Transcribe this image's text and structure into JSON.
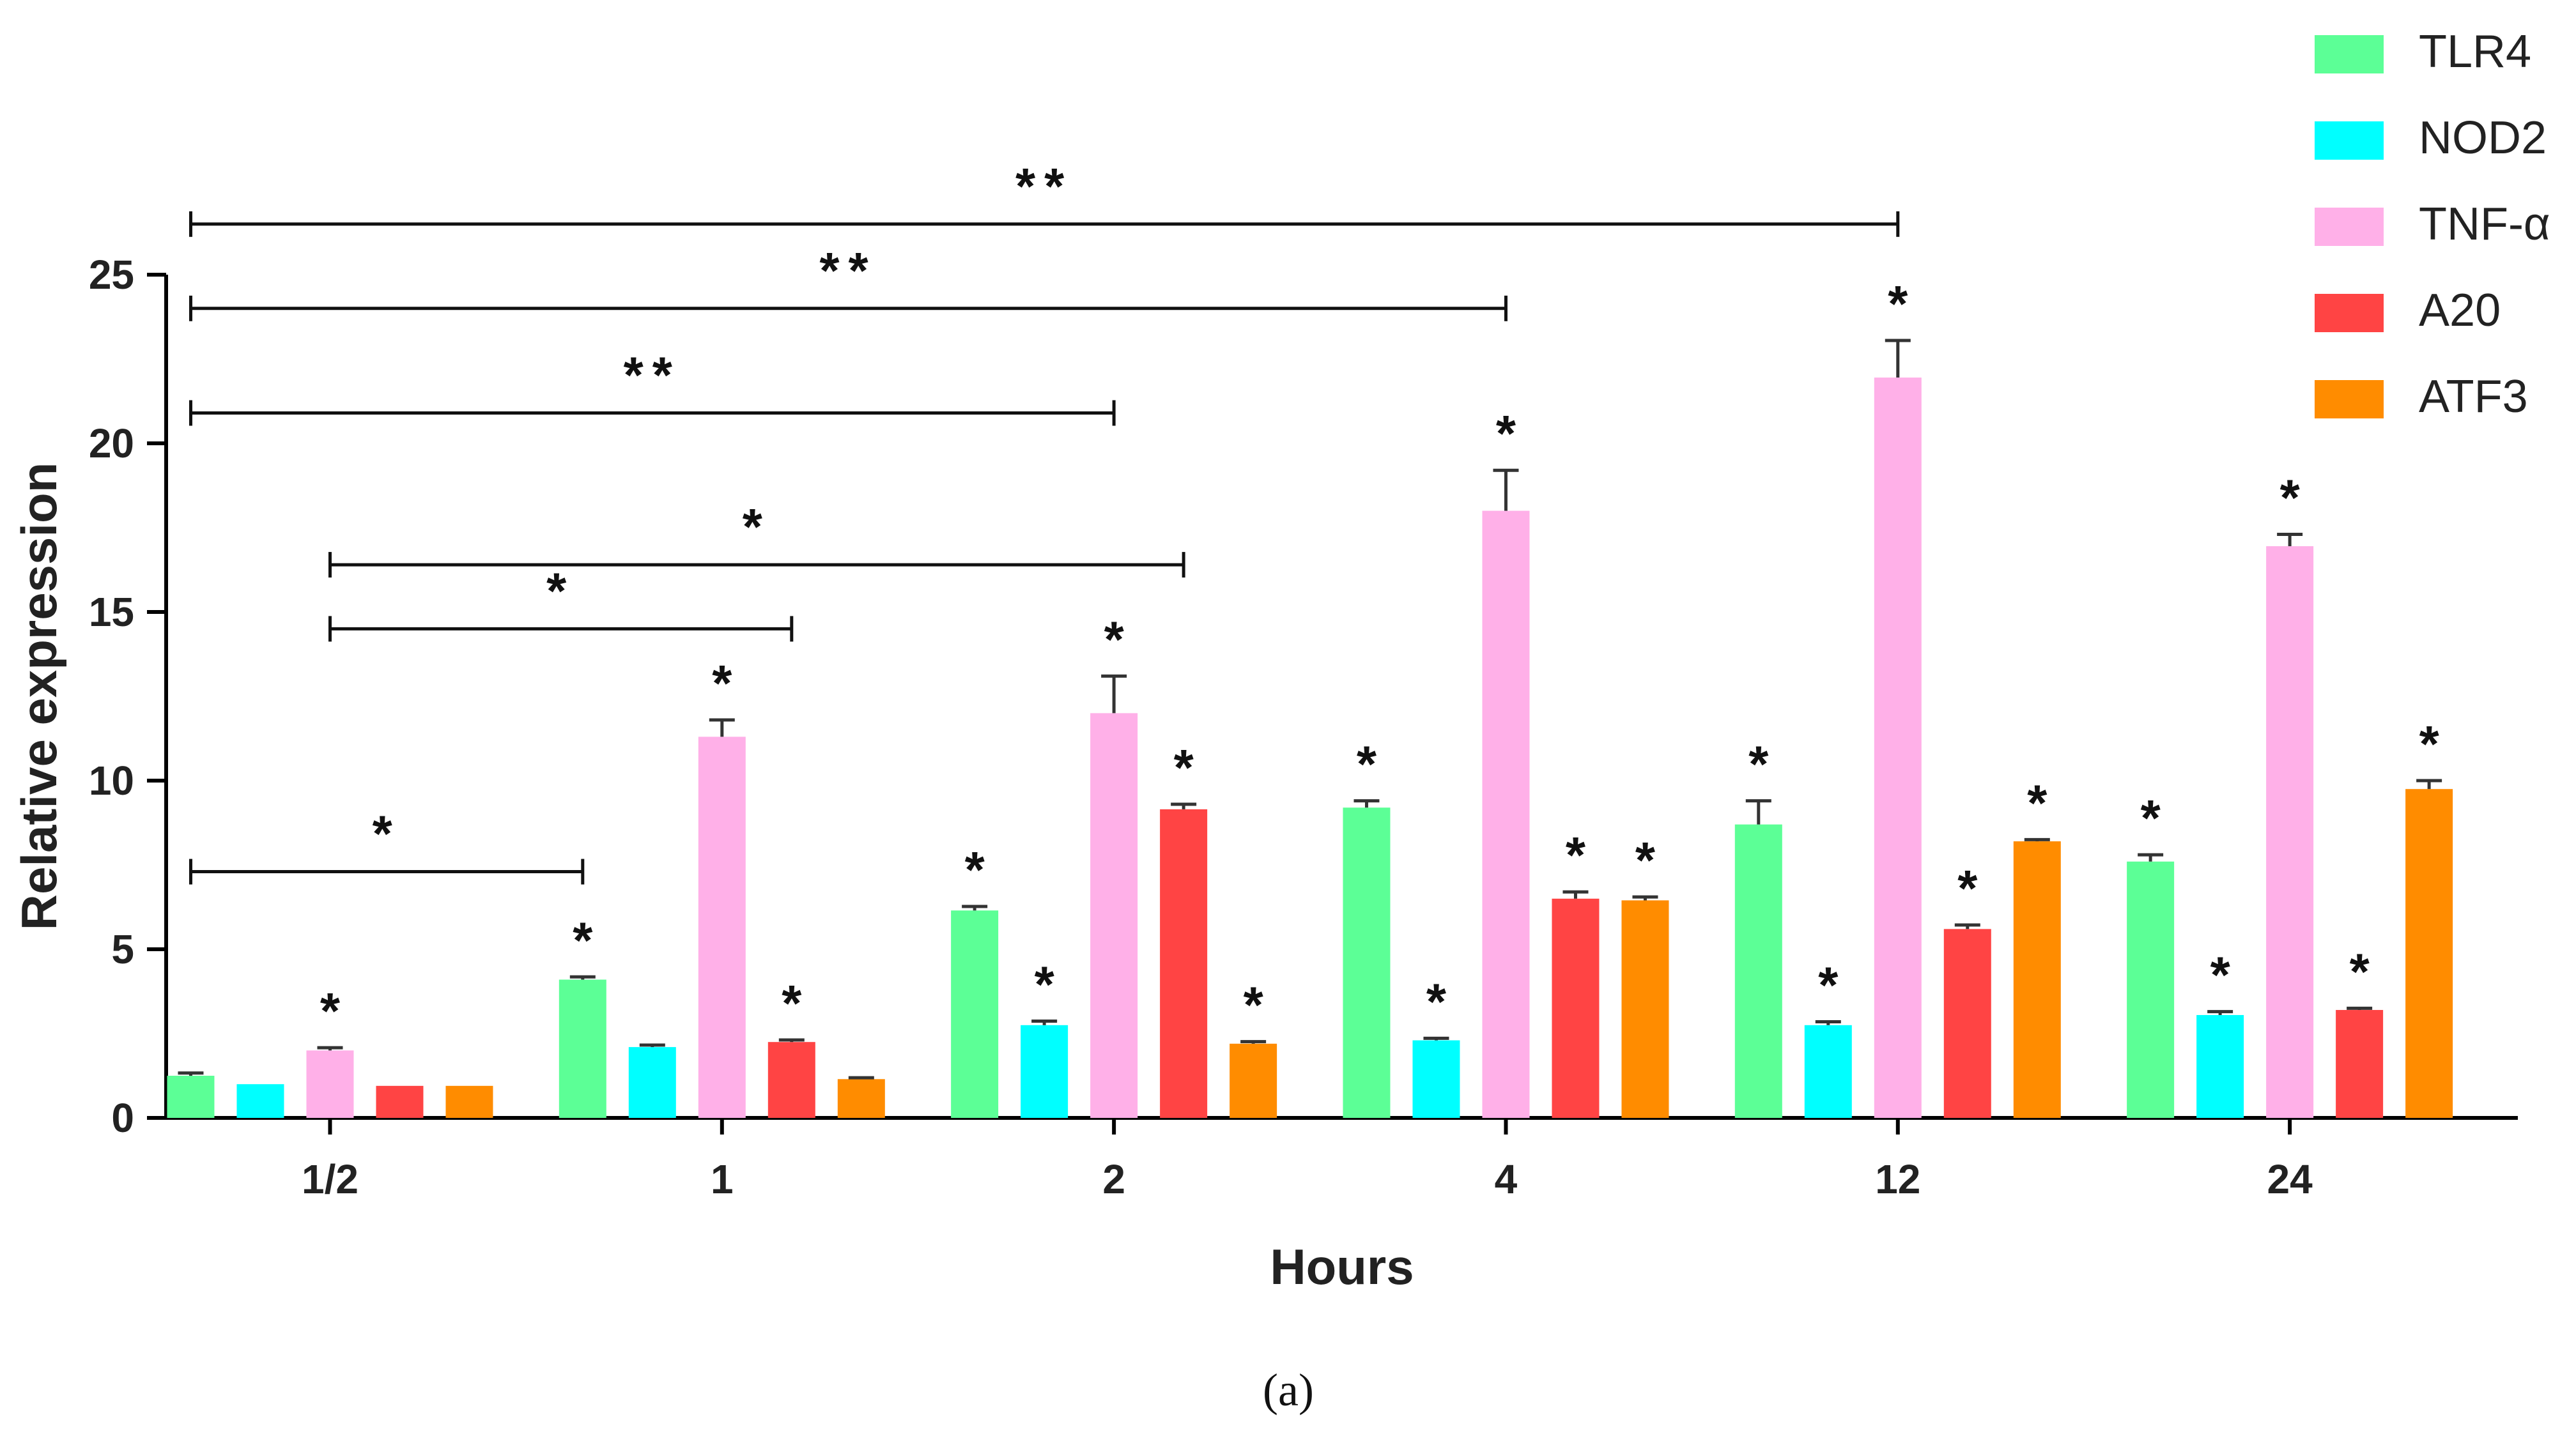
{
  "chart_data": {
    "type": "bar",
    "title": "",
    "xlabel": "Hours",
    "ylabel": "Relative expression",
    "ylim": [
      0,
      25
    ],
    "yticks": [
      "0",
      "5",
      "10",
      "15",
      "20",
      "25"
    ],
    "categories": [
      "1/2",
      "1",
      "2",
      "4",
      "12",
      "24"
    ],
    "series": [
      {
        "name": "TLR4",
        "color": "#5CFF96",
        "values": [
          1.25,
          4.1,
          6.15,
          9.2,
          8.7,
          7.6
        ],
        "errors": [
          0.08,
          0.08,
          0.12,
          0.2,
          0.7,
          0.2
        ],
        "significance": [
          "",
          "*",
          "*",
          "*",
          "*",
          "*"
        ]
      },
      {
        "name": "NOD2",
        "color": "#00FFFF",
        "values": [
          1.0,
          2.1,
          2.75,
          2.3,
          2.75,
          3.05
        ],
        "errors": [
          0.0,
          0.06,
          0.12,
          0.06,
          0.1,
          0.1
        ],
        "significance": [
          "",
          "",
          "*",
          "*",
          "*",
          "*"
        ]
      },
      {
        "name": "TNF-α",
        "color": "#FFB0E8",
        "values": [
          2.0,
          11.3,
          12.0,
          18.0,
          21.95,
          16.95
        ],
        "errors": [
          0.08,
          0.5,
          1.1,
          1.2,
          1.1,
          0.35
        ],
        "significance": [
          "*",
          "*",
          "*",
          "*",
          "*",
          "*"
        ]
      },
      {
        "name": "A20",
        "color": "#FF4444",
        "values": [
          0.95,
          2.25,
          9.15,
          6.5,
          5.6,
          3.2
        ],
        "errors": [
          0.0,
          0.06,
          0.15,
          0.2,
          0.12,
          0.05
        ],
        "significance": [
          "",
          "*",
          "*",
          "*",
          "*",
          "*"
        ]
      },
      {
        "name": "ATF3",
        "color": "#FF8C00",
        "values": [
          0.95,
          1.15,
          2.2,
          6.45,
          8.2,
          9.75
        ],
        "errors": [
          0.0,
          0.04,
          0.06,
          0.1,
          0.05,
          0.25
        ],
        "significance": [
          "",
          "",
          "*",
          "*",
          "*",
          "*"
        ]
      }
    ],
    "comparisons": [
      {
        "from": "1/2 TLR4",
        "to": "1 TLR4",
        "label": "*",
        "at_value": 7.3
      },
      {
        "from": "1/2 TNF-α",
        "to": "1 A20",
        "label": "*",
        "at_value": 14.5
      },
      {
        "from": "1/2 TNF-α",
        "to": "2 A20",
        "label": "*",
        "at_value": 16.4
      },
      {
        "from": "1/2 TLR4",
        "to": "2 TNF-α",
        "label": "**",
        "at_value": 20.9
      },
      {
        "from": "1/2 TLR4",
        "to": "4 TNF-α",
        "label": "**",
        "at_value": 24.0
      },
      {
        "from": "1/2 TLR4",
        "to": "12 TNF-α",
        "label": "**",
        "at_value": 26.5
      }
    ],
    "legend_position": "top-right"
  },
  "caption": "(a)"
}
